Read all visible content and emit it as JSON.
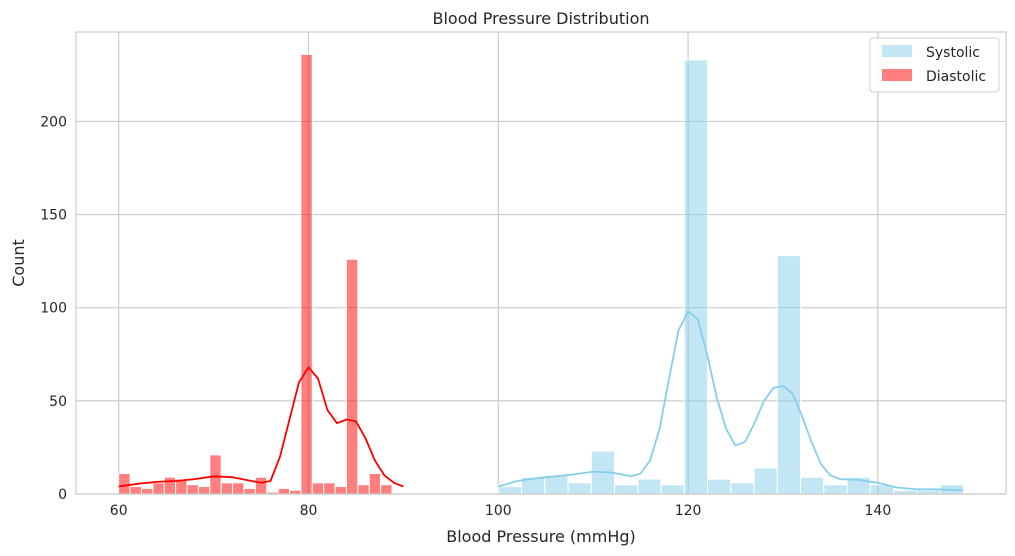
{
  "chart_data": {
    "type": "histogram",
    "title": "Blood Pressure Distribution",
    "xlabel": "Blood Pressure (mmHg)",
    "ylabel": "Count",
    "xlim": [
      55.5,
      153.5
    ],
    "ylim": [
      0,
      248
    ],
    "xticks": [
      60,
      80,
      100,
      120,
      140
    ],
    "yticks": [
      0,
      50,
      100,
      150,
      200
    ],
    "grid": true,
    "legend_position": "top-right",
    "series": [
      {
        "name": "Systolic",
        "color": "#87ceeb",
        "opacity": 0.5,
        "bin_edges": [
          100,
          102.45,
          104.9,
          107.35,
          109.8,
          112.25,
          114.7,
          117.15,
          119.6,
          122.05,
          124.5,
          126.95,
          129.4,
          131.85,
          134.3,
          136.75,
          139.2,
          141.65,
          144.1,
          146.55,
          149
        ],
        "counts": [
          4,
          9,
          10,
          6,
          23,
          5,
          8,
          5,
          233,
          8,
          6,
          14,
          128,
          9,
          5,
          9,
          5,
          2,
          2,
          5
        ],
        "kde": [
          [
            100,
            4
          ],
          [
            102,
            7
          ],
          [
            104,
            8.5
          ],
          [
            106,
            9.5
          ],
          [
            108,
            10.5
          ],
          [
            110,
            12
          ],
          [
            112,
            11.5
          ],
          [
            114,
            9.5
          ],
          [
            115,
            11
          ],
          [
            116,
            18
          ],
          [
            117,
            35
          ],
          [
            118,
            62
          ],
          [
            119,
            88
          ],
          [
            120,
            98
          ],
          [
            121,
            94
          ],
          [
            122,
            75
          ],
          [
            123,
            52
          ],
          [
            124,
            35
          ],
          [
            125,
            26
          ],
          [
            126,
            28
          ],
          [
            127,
            38
          ],
          [
            128,
            50
          ],
          [
            129,
            57
          ],
          [
            130,
            58
          ],
          [
            131,
            54
          ],
          [
            132,
            42
          ],
          [
            133,
            28
          ],
          [
            134,
            16
          ],
          [
            135,
            10
          ],
          [
            136,
            8
          ],
          [
            138,
            7.5
          ],
          [
            140,
            6
          ],
          [
            142,
            3.5
          ],
          [
            144,
            2.5
          ],
          [
            146,
            2.5
          ],
          [
            149,
            2
          ]
        ]
      },
      {
        "name": "Diastolic",
        "color": "#ff0000",
        "opacity": 0.5,
        "bin_edges": [
          60,
          61.2,
          62.4,
          63.6,
          64.8,
          66,
          67.2,
          68.4,
          69.6,
          70.8,
          72,
          73.2,
          74.4,
          75.6,
          76.8,
          78,
          79.2,
          80.4,
          81.6,
          82.8,
          84,
          85.2,
          86.4,
          87.6,
          88.8,
          90
        ],
        "counts": [
          11,
          4,
          3,
          6,
          9,
          8,
          5,
          4,
          21,
          6,
          6,
          3,
          9,
          1,
          3,
          2,
          236,
          6,
          6,
          4,
          126,
          5,
          11,
          5,
          0
        ],
        "kde": [
          [
            60,
            4
          ],
          [
            62,
            5.5
          ],
          [
            64,
            6.5
          ],
          [
            66,
            7
          ],
          [
            68,
            8
          ],
          [
            70,
            9.5
          ],
          [
            72,
            9
          ],
          [
            74,
            7
          ],
          [
            75,
            6
          ],
          [
            76,
            7
          ],
          [
            77,
            20
          ],
          [
            78,
            40
          ],
          [
            79,
            60
          ],
          [
            80,
            68
          ],
          [
            81,
            62
          ],
          [
            82,
            45
          ],
          [
            83,
            38
          ],
          [
            84,
            40
          ],
          [
            85,
            39
          ],
          [
            86,
            30
          ],
          [
            87,
            18
          ],
          [
            88,
            10
          ],
          [
            89,
            6
          ],
          [
            90,
            4
          ]
        ]
      }
    ]
  }
}
